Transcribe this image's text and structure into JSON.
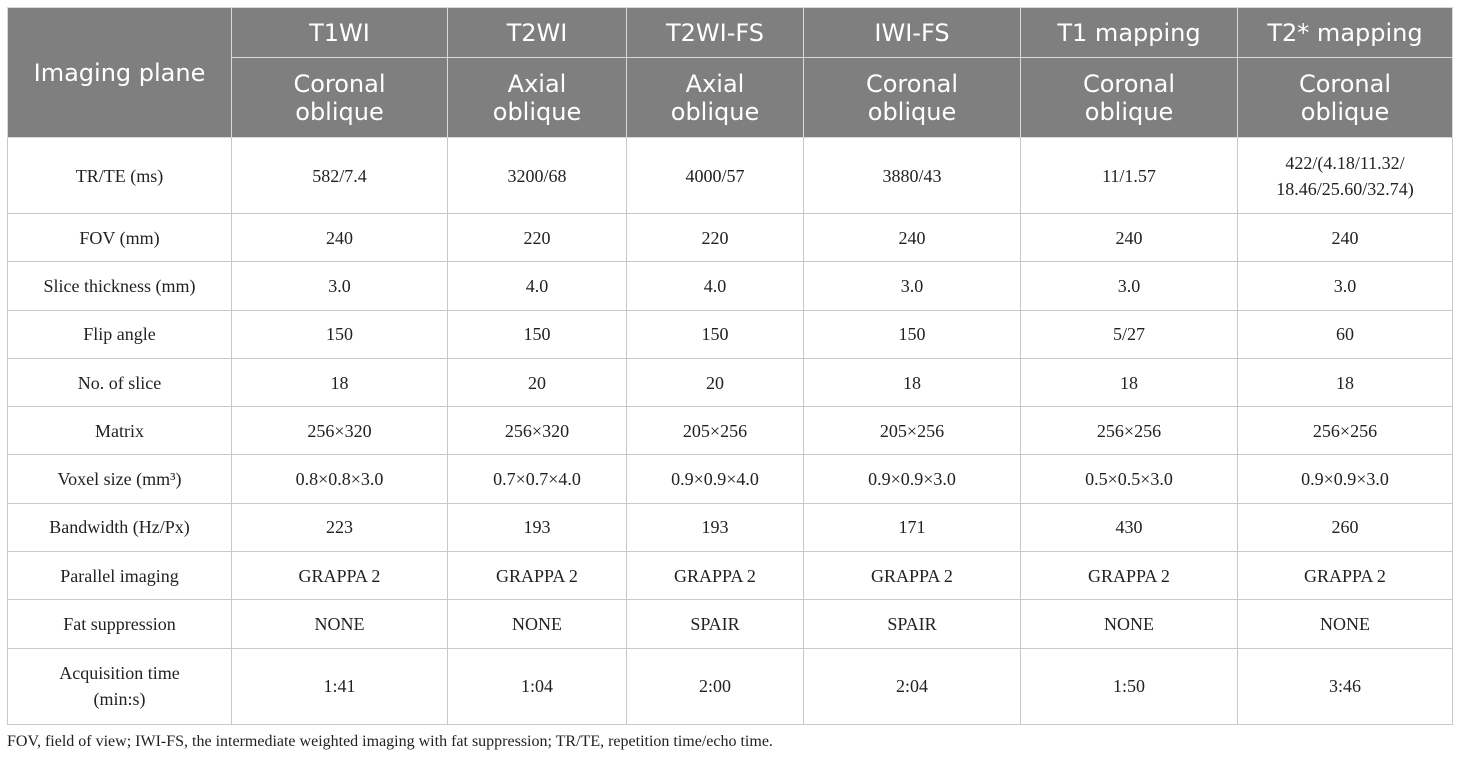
{
  "table": {
    "header": {
      "row_label": "Imaging plane",
      "sequences": [
        "T1WI",
        "T2WI",
        "T2WI-FS",
        "IWI-FS",
        "T1 mapping",
        "T2* mapping"
      ],
      "planes": [
        [
          "Coronal",
          "oblique"
        ],
        [
          "Axial",
          "oblique"
        ],
        [
          "Axial",
          "oblique"
        ],
        [
          "Coronal",
          "oblique"
        ],
        [
          "Coronal",
          "oblique"
        ],
        [
          "Coronal",
          "oblique"
        ]
      ]
    },
    "rows": [
      {
        "label": "TR/TE (ms)",
        "cells": [
          "582/7.4",
          "3200/68",
          "4000/57",
          "3880/43",
          "11/1.57",
          [
            "422/(4.18/11.32/",
            "18.46/25.60/32.74)"
          ]
        ]
      },
      {
        "label": "FOV (mm)",
        "cells": [
          "240",
          "220",
          "220",
          "240",
          "240",
          "240"
        ]
      },
      {
        "label": "Slice thickness (mm)",
        "cells": [
          "3.0",
          "4.0",
          "4.0",
          "3.0",
          "3.0",
          "3.0"
        ]
      },
      {
        "label": "Flip angle",
        "cells": [
          "150",
          "150",
          "150",
          "150",
          "5/27",
          "60"
        ]
      },
      {
        "label": "No. of slice",
        "cells": [
          "18",
          "20",
          "20",
          "18",
          "18",
          "18"
        ]
      },
      {
        "label": "Matrix",
        "cells": [
          "256×320",
          "256×320",
          "205×256",
          "205×256",
          "256×256",
          "256×256"
        ]
      },
      {
        "label": "Voxel size (mm³)",
        "cells": [
          "0.8×0.8×3.0",
          "0.7×0.7×4.0",
          "0.9×0.9×4.0",
          "0.9×0.9×3.0",
          "0.5×0.5×3.0",
          "0.9×0.9×3.0"
        ]
      },
      {
        "label": "Bandwidth (Hz/Px)",
        "cells": [
          "223",
          "193",
          "193",
          "171",
          "430",
          "260"
        ]
      },
      {
        "label": "Parallel imaging",
        "cells": [
          "GRAPPA 2",
          "GRAPPA 2",
          "GRAPPA 2",
          "GRAPPA 2",
          "GRAPPA 2",
          "GRAPPA 2"
        ]
      },
      {
        "label": "Fat suppression",
        "cells": [
          "NONE",
          "NONE",
          "SPAIR",
          "SPAIR",
          "NONE",
          "NONE"
        ]
      },
      {
        "label": [
          "Acquisition time",
          "(min:s)"
        ],
        "cells": [
          "1:41",
          "1:04",
          "2:00",
          "2:04",
          "1:50",
          "3:46"
        ]
      }
    ]
  },
  "footnote": "FOV, field of view; IWI-FS, the intermediate weighted imaging with fat suppression; TR/TE, repetition time/echo time."
}
